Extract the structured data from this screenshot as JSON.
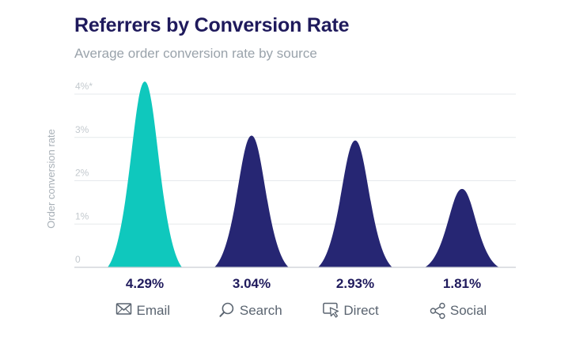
{
  "title": "Referrers by Conversion Rate",
  "subtitle": "Average order conversion rate by source",
  "chart_data": {
    "type": "area",
    "title": "Referrers by Conversion Rate",
    "subtitle": "Average order conversion rate by source",
    "ylabel": "Order conversion rate",
    "xlabel": "",
    "ylim": [
      0,
      4
    ],
    "yticks": [
      "0",
      "1%",
      "2%",
      "3%",
      "4%*"
    ],
    "grid": true,
    "categories": [
      {
        "label": "Email",
        "icon": "envelope-icon"
      },
      {
        "label": "Search",
        "icon": "magnifier-icon"
      },
      {
        "label": "Direct",
        "icon": "cursor-window-icon"
      },
      {
        "label": "Social",
        "icon": "share-icon"
      }
    ],
    "values": [
      4.29,
      3.04,
      2.93,
      1.81
    ],
    "value_labels": [
      "4.29%",
      "3.04%",
      "2.93%",
      "1.81%"
    ],
    "colors": [
      "#0fc8bd",
      "#262673",
      "#262673",
      "#262673"
    ]
  }
}
